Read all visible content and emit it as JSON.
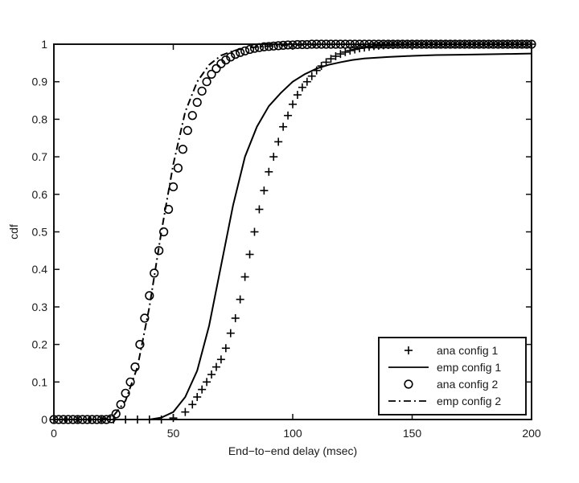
{
  "chart_data": {
    "type": "line",
    "title": "",
    "xlabel": "End−to−end delay (msec)",
    "ylabel": "cdf",
    "xlim": [
      0,
      200
    ],
    "ylim": [
      0,
      1
    ],
    "xticks": [
      0,
      50,
      100,
      150,
      200
    ],
    "yticks": [
      0,
      0.1,
      0.2,
      0.3,
      0.4,
      0.5,
      0.6,
      0.7,
      0.8,
      0.9,
      1
    ],
    "xtick_labels": [
      "0",
      "50",
      "100",
      "150",
      "200"
    ],
    "ytick_labels": [
      "0",
      "0.1",
      "0.2",
      "0.3",
      "0.4",
      "0.5",
      "0.6",
      "0.7",
      "0.8",
      "0.9",
      "1"
    ],
    "grid": false,
    "legend_position": "bottom-right",
    "series": [
      {
        "name": "ana config 1",
        "style": "plus-markers",
        "color": "#000000",
        "x": [
          0,
          5,
          10,
          15,
          20,
          25,
          30,
          35,
          40,
          45,
          50,
          55,
          58,
          60,
          62,
          64,
          66,
          68,
          70,
          72,
          74,
          76,
          78,
          80,
          82,
          84,
          86,
          88,
          90,
          92,
          94,
          96,
          98,
          100,
          102,
          104,
          106,
          108,
          110,
          112,
          114,
          116,
          118,
          120,
          122,
          124,
          126,
          128,
          130,
          132,
          134,
          136,
          138,
          140,
          142,
          144,
          146,
          148,
          150,
          152,
          154,
          156,
          158,
          160,
          162,
          164,
          166,
          168,
          170,
          172,
          174,
          176,
          178,
          180,
          182,
          184,
          186,
          188,
          190,
          192,
          194,
          196,
          198,
          200
        ],
        "y": [
          0,
          0,
          0,
          0,
          0,
          0,
          0,
          0,
          0,
          0,
          0.004,
          0.02,
          0.04,
          0.06,
          0.08,
          0.1,
          0.12,
          0.14,
          0.16,
          0.19,
          0.23,
          0.27,
          0.32,
          0.38,
          0.44,
          0.5,
          0.56,
          0.61,
          0.66,
          0.7,
          0.74,
          0.78,
          0.81,
          0.84,
          0.865,
          0.885,
          0.9,
          0.915,
          0.93,
          0.942,
          0.952,
          0.961,
          0.968,
          0.974,
          0.979,
          0.983,
          0.986,
          0.989,
          0.991,
          0.993,
          0.995,
          0.996,
          0.997,
          0.998,
          0.998,
          0.999,
          0.999,
          0.999,
          1,
          1,
          1,
          1,
          1,
          1,
          1,
          1,
          1,
          1,
          1,
          1,
          1,
          1,
          1,
          1,
          1,
          1,
          1,
          1,
          1,
          1,
          1,
          1,
          1,
          1
        ]
      },
      {
        "name": "emp config 1",
        "style": "solid",
        "color": "#000000",
        "x": [
          0,
          20,
          40,
          45,
          50,
          55,
          60,
          65,
          70,
          75,
          80,
          85,
          90,
          95,
          100,
          105,
          110,
          115,
          120,
          125,
          130,
          140,
          150,
          160,
          170,
          180,
          190,
          200
        ],
        "y": [
          0,
          0,
          0,
          0.005,
          0.02,
          0.06,
          0.13,
          0.25,
          0.41,
          0.57,
          0.7,
          0.78,
          0.835,
          0.87,
          0.9,
          0.92,
          0.935,
          0.945,
          0.952,
          0.958,
          0.962,
          0.966,
          0.969,
          0.971,
          0.972,
          0.973,
          0.974,
          0.975
        ]
      },
      {
        "name": "ana config 2",
        "style": "circle-markers",
        "color": "#000000",
        "x": [
          0,
          2,
          4,
          6,
          8,
          10,
          12,
          14,
          16,
          18,
          20,
          22,
          24,
          26,
          28,
          30,
          32,
          34,
          36,
          38,
          40,
          42,
          44,
          46,
          48,
          50,
          52,
          54,
          56,
          58,
          60,
          62,
          64,
          66,
          68,
          70,
          72,
          74,
          76,
          78,
          80,
          82,
          84,
          86,
          88,
          90,
          92,
          94,
          96,
          98,
          100,
          102,
          104,
          106,
          108,
          110,
          112,
          114,
          116,
          118,
          120,
          122,
          124,
          126,
          128,
          130,
          132,
          134,
          136,
          138,
          140,
          142,
          144,
          146,
          148,
          150,
          152,
          154,
          156,
          158,
          160,
          162,
          164,
          166,
          168,
          170,
          172,
          174,
          176,
          178,
          180,
          182,
          184,
          186,
          188,
          190,
          192,
          194,
          196,
          198,
          200
        ],
        "y": [
          0,
          0,
          0,
          0,
          0,
          0,
          0,
          0,
          0,
          0,
          0,
          0,
          0.002,
          0.015,
          0.04,
          0.07,
          0.1,
          0.14,
          0.2,
          0.27,
          0.33,
          0.39,
          0.45,
          0.5,
          0.56,
          0.62,
          0.67,
          0.72,
          0.77,
          0.81,
          0.845,
          0.875,
          0.9,
          0.92,
          0.935,
          0.948,
          0.958,
          0.966,
          0.973,
          0.978,
          0.982,
          0.986,
          0.989,
          0.991,
          0.993,
          0.994,
          0.995,
          0.996,
          0.997,
          0.998,
          0.998,
          0.999,
          0.999,
          0.999,
          1,
          1,
          1,
          1,
          1,
          1,
          1,
          1,
          1,
          1,
          1,
          1,
          1,
          1,
          1,
          1,
          1,
          1,
          1,
          1,
          1,
          1,
          1,
          1,
          1,
          1,
          1,
          1,
          1,
          1,
          1,
          1,
          1,
          1,
          1,
          1,
          1,
          1,
          1,
          1,
          1,
          1,
          1,
          1,
          1,
          1,
          1
        ]
      },
      {
        "name": "emp config 2",
        "style": "dash-dot",
        "color": "#000000",
        "x": [
          0,
          20,
          25,
          30,
          35,
          40,
          45,
          50,
          55,
          60,
          65,
          70,
          75,
          80,
          90,
          100,
          110,
          120,
          140,
          160,
          180,
          200
        ],
        "y": [
          0,
          0,
          0.01,
          0.05,
          0.14,
          0.3,
          0.5,
          0.68,
          0.82,
          0.9,
          0.945,
          0.97,
          0.982,
          0.99,
          0.995,
          0.998,
          0.999,
          1,
          1,
          1,
          1,
          1
        ]
      }
    ]
  }
}
